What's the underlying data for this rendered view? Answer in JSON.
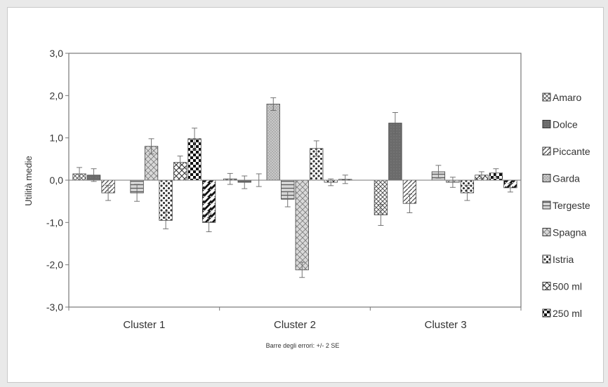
{
  "chart_data": {
    "type": "bar",
    "ylabel": "Utilità medie",
    "xlabel": "",
    "note": "Barre degli errori: +/- 2 SE",
    "ylim": [
      -3,
      3
    ],
    "yticks": [
      "3,0",
      "2,0",
      "1,0",
      "0,0",
      "-1,0",
      "-2,0",
      "-3,0"
    ],
    "categories": [
      "Cluster 1",
      "Cluster 2",
      "Cluster 3"
    ],
    "grid": false,
    "legend_position": "right",
    "series": [
      {
        "name": "Amaro",
        "values": [
          0.15,
          0.03,
          -0.82
        ],
        "errors": [
          0.15,
          0.13,
          0.25
        ]
      },
      {
        "name": "Dolce",
        "values": [
          0.12,
          -0.05,
          1.35
        ],
        "errors": [
          0.15,
          0.15,
          0.25
        ]
      },
      {
        "name": "Piccante",
        "values": [
          -0.3,
          0.0,
          -0.55
        ],
        "errors": [
          0.18,
          0.15,
          0.22
        ]
      },
      {
        "name": "Garda",
        "values": [
          0.0,
          1.8,
          0.0
        ],
        "errors": [
          0.0,
          0.15,
          0.0
        ]
      },
      {
        "name": "Tergeste",
        "values": [
          -0.3,
          -0.45,
          0.2
        ],
        "errors": [
          0.2,
          0.18,
          0.15
        ]
      },
      {
        "name": "Spagna",
        "values": [
          0.8,
          -2.12,
          -0.05
        ],
        "errors": [
          0.18,
          0.18,
          0.12
        ]
      },
      {
        "name": "Istria",
        "values": [
          -0.95,
          0.75,
          -0.3
        ],
        "errors": [
          0.2,
          0.18,
          0.18
        ]
      },
      {
        "name": "500 ml",
        "values": [
          0.42,
          -0.05,
          0.12
        ],
        "errors": [
          0.15,
          0.08,
          0.08
        ]
      },
      {
        "name": "250 ml",
        "values": [
          0.98,
          0.02,
          0.17
        ],
        "errors": [
          0.25,
          0.1,
          0.1
        ]
      },
      {
        "name": "",
        "values": [
          -1.0,
          0.0,
          -0.18
        ],
        "errors": [
          0.22,
          0.0,
          0.1
        ]
      }
    ],
    "legend": [
      "Amaro",
      "Dolce",
      "Piccante",
      "Garda",
      "Tergeste",
      "Spagna",
      "Istria",
      "500 ml",
      "250 ml"
    ]
  }
}
